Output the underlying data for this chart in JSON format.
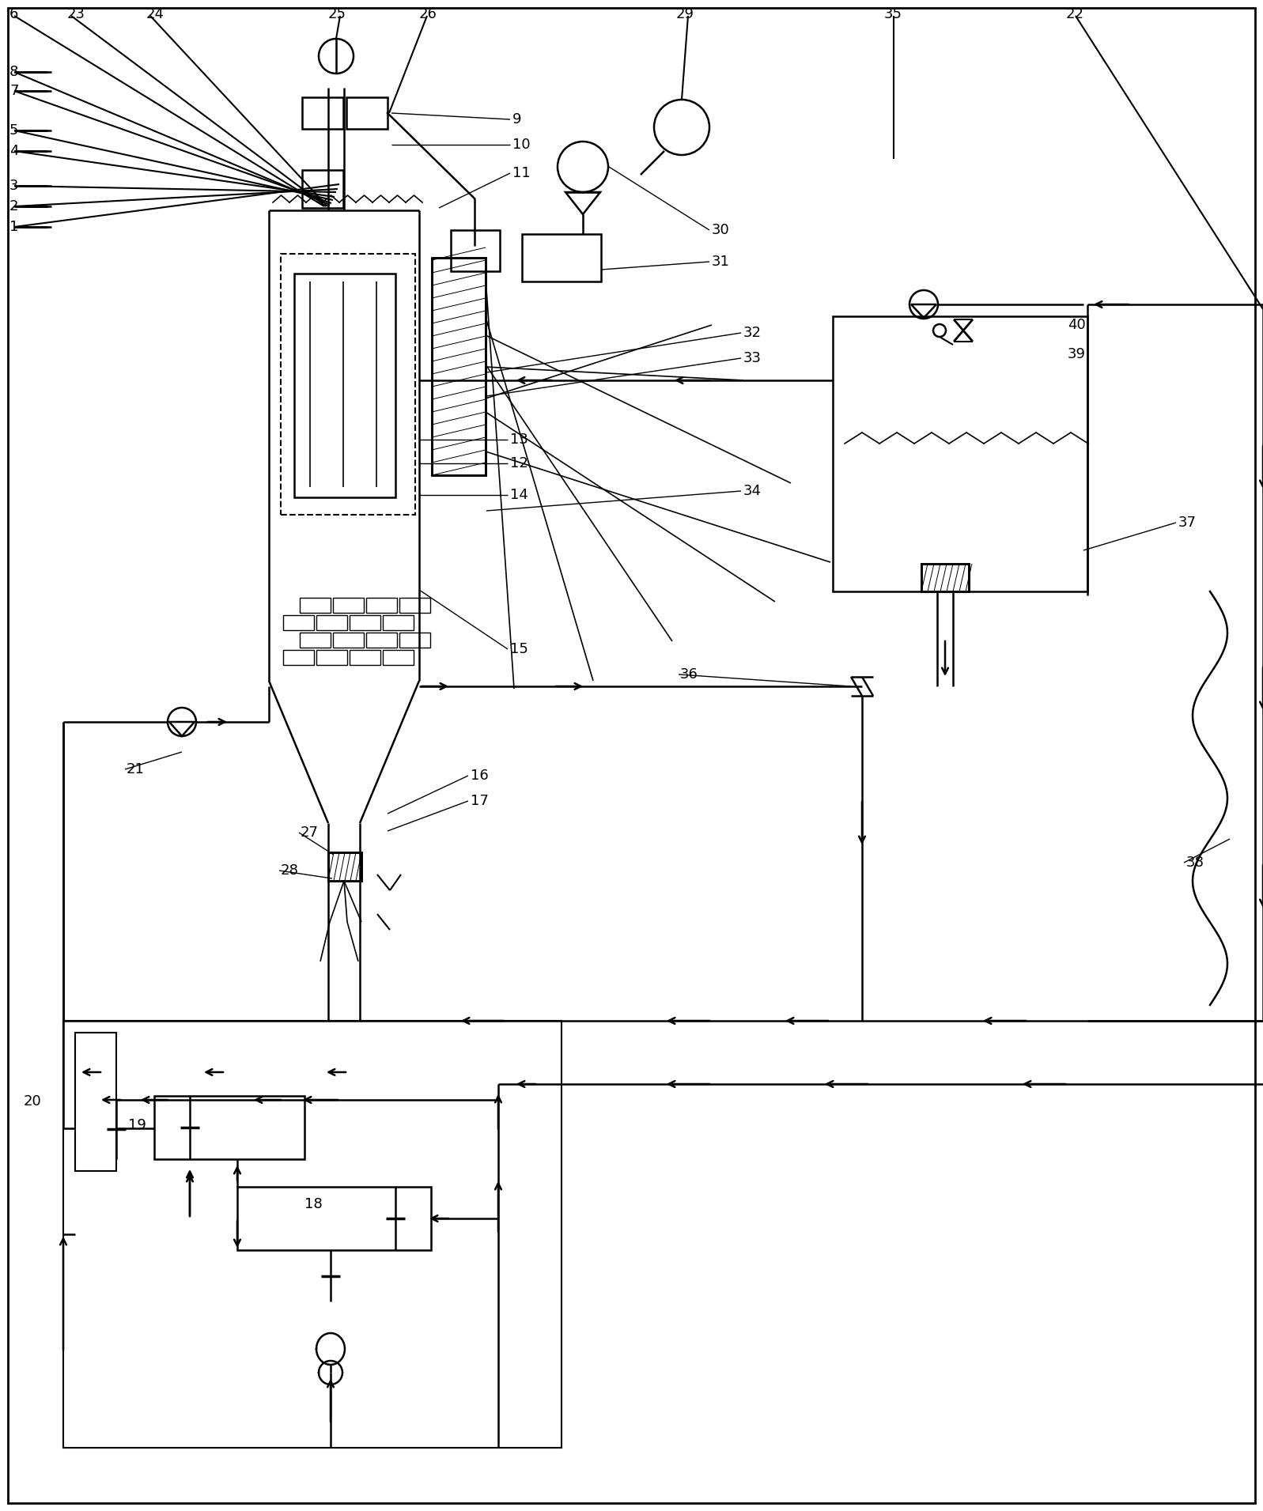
{
  "bg_color": "#ffffff",
  "lc": "#000000",
  "lw": 1.8,
  "figsize": [
    15.97,
    19.11
  ],
  "dpi": 100
}
